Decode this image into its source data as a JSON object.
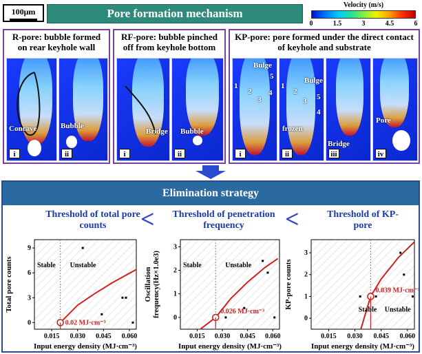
{
  "scale_bar": "100μm",
  "top_title": "Pore formation mechanism",
  "legend": {
    "title": "Velocity (m/s)",
    "ticks": [
      "0",
      "1.5",
      "3",
      "4.5",
      "6"
    ]
  },
  "panels": [
    {
      "title": "R-pore: bubble formed on rear keyhole wall",
      "images": [
        {
          "index": "i",
          "labels": [
            "Concave"
          ]
        },
        {
          "index": "ii",
          "labels": [
            "Bubble"
          ]
        }
      ]
    },
    {
      "title": "RF-pore: bubble pinched off from keyhole bottom",
      "images": [
        {
          "index": "i",
          "labels": [
            "Bridge"
          ]
        },
        {
          "index": "ii",
          "labels": [
            "Bubble"
          ]
        }
      ]
    },
    {
      "title": "KP-pore: pore formed under the direct contact of keyhole and substrate",
      "images": [
        {
          "index": "i",
          "labels": [
            "Bulge",
            "1",
            "2",
            "3",
            "4",
            "5"
          ]
        },
        {
          "index": "ii",
          "labels": [
            "Bulge",
            "1",
            "2",
            "3",
            "4",
            "5",
            "frozen"
          ]
        },
        {
          "index": "iii",
          "labels": [
            "Bridge"
          ]
        },
        {
          "index": "iv",
          "labels": [
            "Pore"
          ]
        }
      ]
    }
  ],
  "strategy_title": "Elimination strategy",
  "thresholds": [
    {
      "title": "Threshold of total pore counts"
    },
    {
      "title": "Threshold of penetration frequency"
    },
    {
      "title": "Threshold of KP-pore"
    }
  ],
  "chevron": "<",
  "chart_data": [
    {
      "type": "scatter",
      "xlabel": "Input energy density (MJ·cm⁻³)",
      "ylabel": "Total pore counts",
      "xticks": [
        "0.015",
        "0.030",
        "0.045",
        "0.060"
      ],
      "yticks": [
        "0",
        "3",
        "6",
        "9"
      ],
      "xlim": [
        0.005,
        0.064
      ],
      "ylim": [
        -0.8,
        10
      ],
      "regions": [
        "Stable",
        "Unstable"
      ],
      "threshold_label": "0.02 MJ·cm⁻³",
      "threshold_x": 0.02,
      "points": [
        [
          0.033,
          9
        ],
        [
          0.044,
          1
        ],
        [
          0.056,
          3
        ],
        [
          0.058,
          3
        ],
        [
          0.062,
          0
        ]
      ],
      "curve": [
        [
          0.02,
          0
        ],
        [
          0.03,
          2.1
        ],
        [
          0.04,
          3.5
        ],
        [
          0.05,
          4.8
        ],
        [
          0.064,
          6.4
        ]
      ]
    },
    {
      "type": "scatter",
      "xlabel": "Input energy density (MJ·cm⁻³)",
      "ylabel": "Oscillation frequency(Hz×1.0e3)",
      "xticks": [
        "0.015",
        "0.030",
        "0.045",
        "0.060"
      ],
      "yticks": [
        "0",
        "1",
        "2",
        "3"
      ],
      "xlim": [
        0.005,
        0.064
      ],
      "ylim": [
        -0.5,
        3.3
      ],
      "regions": [
        "Stable",
        "Unstable"
      ],
      "threshold_label": "0.026 MJ·cm⁻³",
      "threshold_x": 0.026,
      "points": [
        [
          0.032,
          0
        ],
        [
          0.043,
          0.4
        ],
        [
          0.054,
          2.4
        ],
        [
          0.057,
          1.9
        ],
        [
          0.061,
          0
        ]
      ],
      "curve": [
        [
          0.015,
          -0.6
        ],
        [
          0.026,
          0
        ],
        [
          0.035,
          0.8
        ],
        [
          0.045,
          1.5
        ],
        [
          0.055,
          2.1
        ],
        [
          0.063,
          2.5
        ]
      ]
    },
    {
      "type": "scatter",
      "xlabel": "Input energy density (MJ·cm⁻³)",
      "ylabel": "KP-pore counts",
      "xticks": [
        "0.015",
        "0.030",
        "0.045",
        "0.060"
      ],
      "yticks": [
        "0",
        "1",
        "2",
        "3"
      ],
      "xlim": [
        0.005,
        0.064
      ],
      "ylim": [
        -0.5,
        3.6
      ],
      "regions": [
        "Stable",
        "Unstable"
      ],
      "threshold_label": "0.039 MJ·cm⁻³",
      "threshold_x": 0.039,
      "points": [
        [
          0.033,
          1
        ],
        [
          0.042,
          1
        ],
        [
          0.056,
          3
        ],
        [
          0.058,
          2
        ],
        [
          0.063,
          1
        ]
      ],
      "curve": [
        [
          0.033,
          -0.6
        ],
        [
          0.039,
          1
        ],
        [
          0.045,
          1.8
        ],
        [
          0.055,
          2.8
        ],
        [
          0.064,
          3.5
        ]
      ]
    }
  ]
}
